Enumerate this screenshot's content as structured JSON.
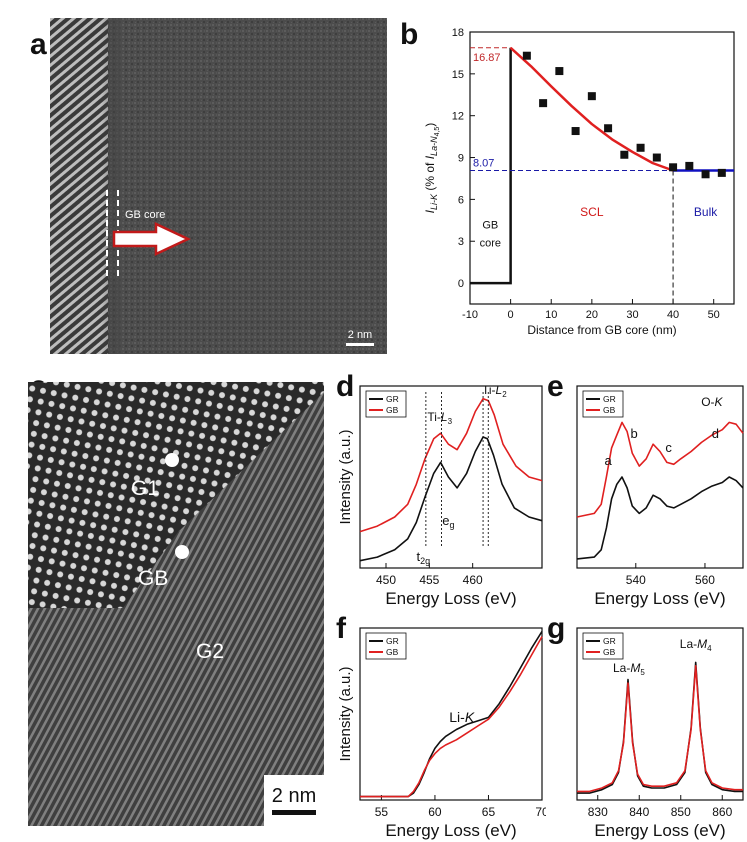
{
  "figure": {
    "panels": [
      "a",
      "b",
      "c",
      "d",
      "e",
      "f",
      "g"
    ]
  },
  "panel_a": {
    "label": "a",
    "gb_core_label": "GB core",
    "scale_bar": "2 nm",
    "colors": {
      "arrow_fill": "#ffffff",
      "arrow_stroke": "#c21a1a",
      "image_bg": "#4a4a4a"
    }
  },
  "panel_c": {
    "label": "c",
    "grain_labels": [
      "G1",
      "GB",
      "G2"
    ],
    "scale_bar": "2 nm"
  },
  "chart_data": [
    {
      "id": "b",
      "type": "scatter",
      "title": "",
      "xlabel": "Distance from GB core (nm)",
      "ylabel": "I_Li-K (% of I_La-N4,5)",
      "ylabel_parts": {
        "i1": "I",
        "s1": "Li-K",
        "mid": " (% of ",
        "i2": "I",
        "s2": "La-N",
        "s3": "4,5",
        "end": ")"
      },
      "xlim": [
        -10,
        55
      ],
      "ylim": [
        -1.5,
        18
      ],
      "xticks": [
        -10,
        0,
        10,
        20,
        30,
        40,
        50
      ],
      "yticks": [
        0,
        3,
        6,
        9,
        12,
        15,
        18
      ],
      "points": {
        "x": [
          4,
          8,
          12,
          16,
          20,
          24,
          28,
          32,
          36,
          40,
          44,
          48,
          52
        ],
        "y": [
          16.3,
          12.9,
          15.2,
          10.9,
          13.4,
          11.1,
          9.2,
          9.7,
          9.0,
          8.3,
          8.4,
          7.8,
          7.9
        ]
      },
      "fit_curve": {
        "x": [
          0,
          5,
          10,
          15,
          20,
          25,
          30,
          35,
          40
        ],
        "y": [
          16.87,
          15.55,
          14.1,
          12.7,
          11.4,
          10.3,
          9.4,
          8.6,
          8.07
        ]
      },
      "bulk_line": {
        "x": [
          40,
          55
        ],
        "y": [
          8.07,
          8.07
        ]
      },
      "gb_step": {
        "x": [
          -10,
          0,
          0
        ],
        "y": [
          0,
          0,
          16.87
        ]
      },
      "reference_values": [
        "16.87",
        "8.07"
      ],
      "region_labels": {
        "gb_line1": "GB",
        "gb_line2": "core",
        "scl": "SCL",
        "bulk": "Bulk"
      },
      "colors": {
        "fit": "#e02020",
        "bulk": "#1010c0",
        "ref_red": "#c0282a",
        "ref_blue": "#1a1aa6",
        "scl_text": "#d01818",
        "bulk_text": "#1a1aa6"
      },
      "label": "b"
    },
    {
      "id": "d",
      "type": "line",
      "label": "d",
      "xlabel": "Energy Loss (eV)",
      "ylabel": "Intensity (a.u.)",
      "xlim": [
        447,
        468
      ],
      "xticks": [
        450,
        455,
        460
      ],
      "legend": [
        "GR",
        "GB"
      ],
      "peak_labels": [
        "Ti-",
        "L",
        "3",
        "Ti-",
        "L",
        "2",
        "e",
        "g",
        "t",
        "2g"
      ],
      "series": [
        {
          "name": "GR",
          "color": "#111111",
          "x": [
            447,
            449,
            451,
            452.5,
            453.5,
            454.5,
            455.5,
            456.3,
            457.2,
            458.2,
            459.3,
            460.3,
            461.2,
            461.7,
            462.4,
            463.4,
            464.8,
            466.5,
            468
          ],
          "y": [
            0.04,
            0.06,
            0.1,
            0.16,
            0.25,
            0.39,
            0.52,
            0.58,
            0.5,
            0.44,
            0.52,
            0.64,
            0.72,
            0.71,
            0.62,
            0.46,
            0.33,
            0.28,
            0.26
          ]
        },
        {
          "name": "GB",
          "color": "#e02020",
          "x": [
            447,
            449,
            451,
            452.5,
            453.5,
            454.5,
            455.5,
            456.3,
            457.2,
            458.2,
            459.3,
            460.3,
            461.2,
            461.8,
            462.5,
            463.5,
            465,
            466.5,
            468
          ],
          "y": [
            0.2,
            0.23,
            0.28,
            0.35,
            0.46,
            0.6,
            0.71,
            0.74,
            0.68,
            0.65,
            0.74,
            0.86,
            0.93,
            0.92,
            0.84,
            0.68,
            0.56,
            0.5,
            0.48
          ]
        }
      ]
    },
    {
      "id": "e",
      "type": "line",
      "label": "e",
      "xlabel": "Energy Loss (eV)",
      "ylabel": "",
      "xlim": [
        523,
        571
      ],
      "xticks": [
        540,
        560
      ],
      "legend": [
        "GR",
        "GB"
      ],
      "peak_labels": [
        "a",
        "b",
        "c",
        "d",
        "O-",
        "K"
      ],
      "series": [
        {
          "name": "GR",
          "color": "#111111",
          "x": [
            523,
            528,
            530,
            531.5,
            533,
            534.5,
            536,
            537.5,
            539,
            541,
            543,
            545,
            547,
            549,
            551,
            553,
            556,
            559,
            562,
            565,
            567,
            569,
            571
          ],
          "y": [
            0.05,
            0.06,
            0.1,
            0.22,
            0.38,
            0.46,
            0.5,
            0.44,
            0.34,
            0.3,
            0.33,
            0.4,
            0.38,
            0.34,
            0.33,
            0.35,
            0.38,
            0.42,
            0.45,
            0.47,
            0.5,
            0.48,
            0.44
          ]
        },
        {
          "name": "GB",
          "color": "#e02020",
          "x": [
            523,
            528,
            530,
            531.5,
            533,
            534.5,
            536,
            537.5,
            539,
            541,
            543,
            545,
            547,
            549,
            551,
            553,
            556,
            559,
            562,
            565,
            567,
            569,
            571
          ],
          "y": [
            0.28,
            0.3,
            0.35,
            0.5,
            0.66,
            0.73,
            0.8,
            0.75,
            0.63,
            0.56,
            0.6,
            0.68,
            0.64,
            0.58,
            0.57,
            0.6,
            0.64,
            0.69,
            0.73,
            0.76,
            0.8,
            0.79,
            0.74
          ]
        }
      ]
    },
    {
      "id": "f",
      "type": "line",
      "label": "f",
      "xlabel": "Energy Loss (eV)",
      "ylabel": "Intensity (a.u.)",
      "xlim": [
        53,
        70
      ],
      "xticks": [
        55,
        60,
        65,
        70
      ],
      "legend": [
        "GR",
        "GB"
      ],
      "peak_labels": [
        "Li-",
        "K"
      ],
      "series": [
        {
          "name": "GR",
          "color": "#111111",
          "x": [
            53,
            56,
            57.5,
            58,
            58.5,
            59,
            59.5,
            60,
            60.5,
            61,
            62,
            63,
            64,
            65,
            66,
            67,
            68,
            69,
            70
          ],
          "y": [
            0.02,
            0.02,
            0.02,
            0.04,
            0.09,
            0.16,
            0.24,
            0.3,
            0.34,
            0.37,
            0.41,
            0.44,
            0.46,
            0.48,
            0.56,
            0.66,
            0.77,
            0.88,
            0.98
          ]
        },
        {
          "name": "GB",
          "color": "#e02020",
          "x": [
            53,
            56,
            57.5,
            58,
            58.5,
            59,
            59.5,
            60,
            60.5,
            61,
            62,
            63,
            64,
            65,
            66,
            67,
            68,
            69,
            70
          ],
          "y": [
            0.02,
            0.02,
            0.02,
            0.05,
            0.1,
            0.17,
            0.23,
            0.27,
            0.3,
            0.32,
            0.35,
            0.39,
            0.43,
            0.47,
            0.54,
            0.63,
            0.73,
            0.84,
            0.95
          ]
        }
      ]
    },
    {
      "id": "g",
      "type": "line",
      "label": "g",
      "xlabel": "Energy Loss (eV)",
      "ylabel": "",
      "xlim": [
        825,
        865
      ],
      "xticks": [
        830,
        840,
        850,
        860
      ],
      "legend": [
        "GR",
        "GB"
      ],
      "peak_labels": [
        "La-",
        "M",
        "5",
        "La-",
        "M",
        "4"
      ],
      "series": [
        {
          "name": "GR",
          "color": "#111111",
          "x": [
            825,
            828,
            831,
            833.5,
            835,
            836.2,
            837.3,
            838.4,
            839.6,
            841,
            843,
            846,
            849,
            851,
            852.5,
            853.6,
            854.7,
            856,
            857.5,
            860,
            863,
            865
          ],
          "y": [
            0.04,
            0.04,
            0.06,
            0.09,
            0.16,
            0.34,
            0.7,
            0.34,
            0.14,
            0.08,
            0.07,
            0.07,
            0.09,
            0.16,
            0.42,
            0.8,
            0.42,
            0.16,
            0.09,
            0.06,
            0.05,
            0.05
          ]
        },
        {
          "name": "GB",
          "color": "#e02020",
          "x": [
            825,
            828,
            831,
            833.5,
            835,
            836.2,
            837.3,
            838.4,
            839.6,
            841,
            843,
            846,
            849,
            851,
            852.5,
            853.6,
            854.7,
            856,
            857.5,
            860,
            863,
            865
          ],
          "y": [
            0.05,
            0.05,
            0.07,
            0.1,
            0.17,
            0.33,
            0.68,
            0.33,
            0.15,
            0.09,
            0.08,
            0.08,
            0.1,
            0.17,
            0.41,
            0.78,
            0.41,
            0.17,
            0.1,
            0.07,
            0.06,
            0.06
          ]
        }
      ]
    }
  ]
}
